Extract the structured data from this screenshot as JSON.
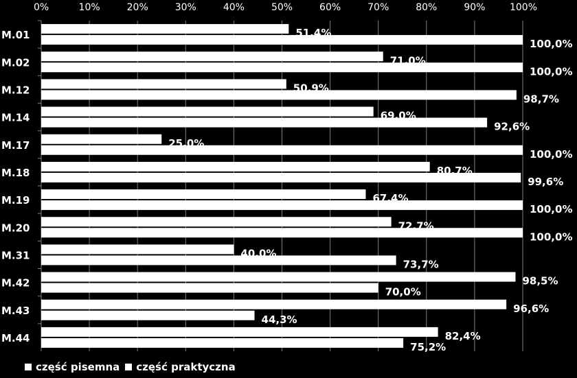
{
  "chart_data": {
    "type": "bar",
    "orientation": "horizontal",
    "categories": [
      "M.01",
      "M.02",
      "M.12",
      "M.14",
      "M.17",
      "M.18",
      "M.19",
      "M.20",
      "M.31",
      "M.42",
      "M.43",
      "M.44"
    ],
    "series": [
      {
        "name": "część pisemna",
        "values": [
          51.4,
          71.0,
          50.9,
          69.0,
          25.0,
          80.7,
          67.4,
          72.7,
          40.0,
          98.5,
          96.6,
          82.4
        ],
        "labels": [
          "51,4%",
          "71,0%",
          "50,9%",
          "69,0%",
          "25,0%",
          "80,7%",
          "67,4%",
          "72,7%",
          "40,0%",
          "98,5%",
          "96,6%",
          "82,4%"
        ],
        "color": "#ffffff"
      },
      {
        "name": "część praktyczna",
        "values": [
          100.0,
          100.0,
          98.7,
          92.6,
          100.0,
          99.6,
          100.0,
          100.0,
          73.7,
          70.0,
          44.3,
          75.2
        ],
        "labels": [
          "100,0%",
          "100,0%",
          "98,7%",
          "92,6%",
          "100,0%",
          "99,6%",
          "100,0%",
          "100,0%",
          "73,7%",
          "70,0%",
          "44,3%",
          "75,2%"
        ],
        "color": "#ffffff"
      }
    ],
    "xlim": [
      0,
      100
    ],
    "xticks": [
      "0%",
      "10%",
      "20%",
      "30%",
      "40%",
      "50%",
      "60%",
      "70%",
      "80%",
      "90%",
      "100%"
    ],
    "grid": true,
    "legend_position": "bottom-left",
    "background": "#000000",
    "grid_color": "#7f7f7f"
  }
}
